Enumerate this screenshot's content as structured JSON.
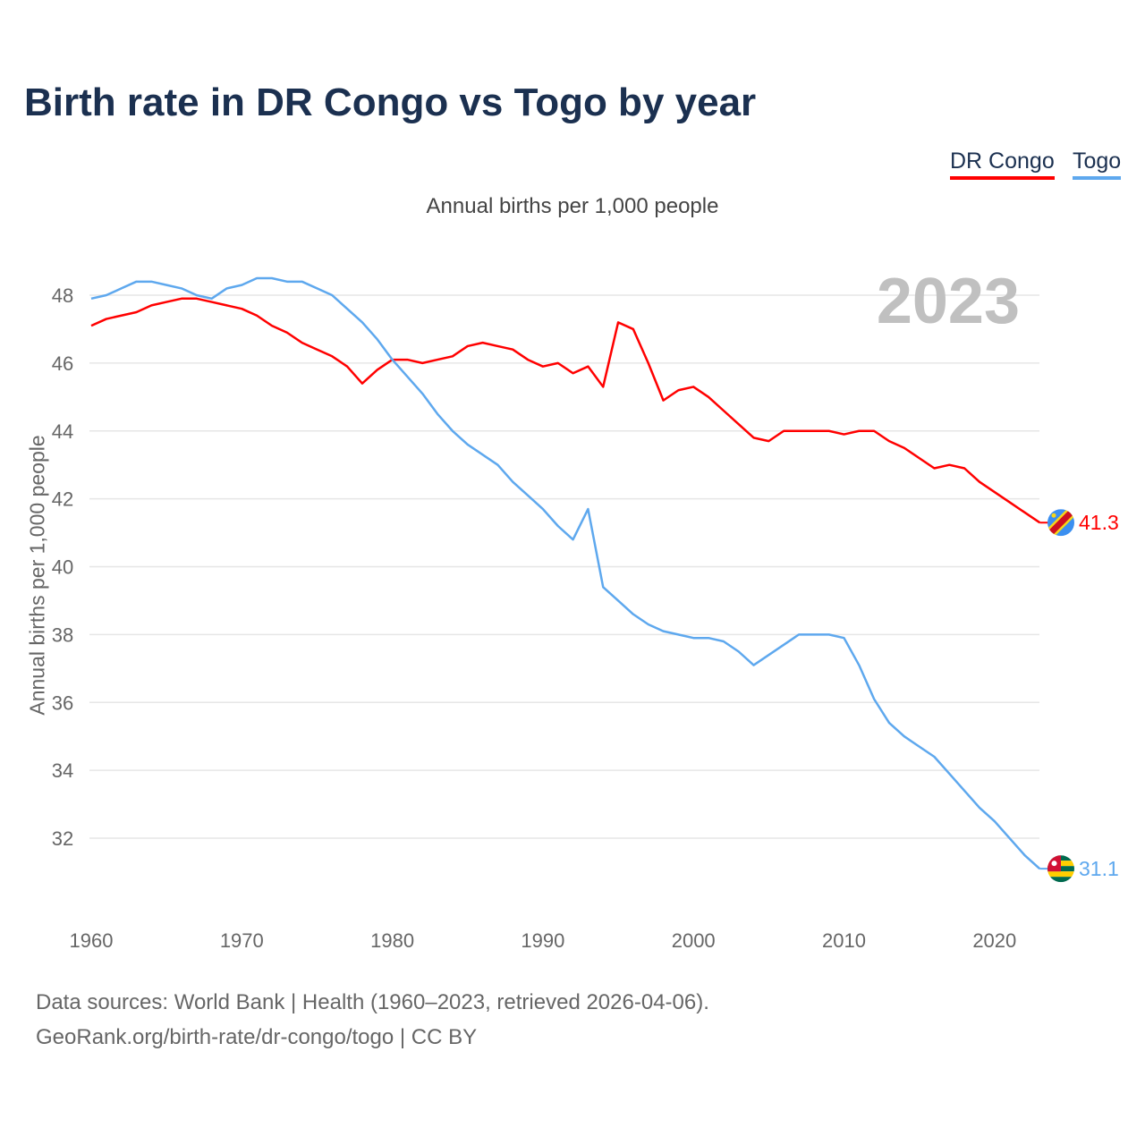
{
  "title": "Birth rate in DR Congo vs Togo by year",
  "legend": [
    "DR Congo",
    "Togo"
  ],
  "subtitle": "Annual births per 1,000 people",
  "footer": [
    "Data sources: World Bank | Health (1960–2023, retrieved 2026-04-06).",
    "GeoRank.org/birth-rate/dr-congo/togo | CC BY"
  ],
  "chart_data": {
    "type": "line",
    "title": "Birth rate in DR Congo vs Togo by year",
    "ylabel": "Annual births per 1,000 people",
    "xlabel": "",
    "year_watermark": "2023",
    "xlim": [
      1960,
      2023
    ],
    "ylim": [
      30.5,
      49
    ],
    "xticks": [
      1960,
      1970,
      1980,
      1990,
      2000,
      2010,
      2020
    ],
    "yticks": [
      32,
      34,
      36,
      38,
      40,
      42,
      44,
      46,
      48
    ],
    "grid": true,
    "legend_position": "top-right",
    "x_start": 1960,
    "series": [
      {
        "name": "DR Congo",
        "color": "#ff0000",
        "end_label": "41.3",
        "flag": "dr-congo-flag-icon",
        "values": [
          47.1,
          47.3,
          47.4,
          47.5,
          47.7,
          47.8,
          47.9,
          47.9,
          47.8,
          47.7,
          47.6,
          47.4,
          47.1,
          46.9,
          46.6,
          46.4,
          46.2,
          45.9,
          45.4,
          45.8,
          46.1,
          46.1,
          46.0,
          46.1,
          46.2,
          46.5,
          46.6,
          46.5,
          46.4,
          46.1,
          45.9,
          46.0,
          45.7,
          45.9,
          45.3,
          47.2,
          47.0,
          46.0,
          44.9,
          45.2,
          45.3,
          45.0,
          44.6,
          44.2,
          43.8,
          43.7,
          44.0,
          44.0,
          44.0,
          44.0,
          43.9,
          44.0,
          44.0,
          43.7,
          43.5,
          43.2,
          42.9,
          43.0,
          42.9,
          42.5,
          42.2,
          41.9,
          41.6,
          41.3
        ]
      },
      {
        "name": "Togo",
        "color": "#5ea8ee",
        "end_label": "31.1",
        "flag": "togo-flag-icon",
        "values": [
          47.9,
          48.0,
          48.2,
          48.4,
          48.4,
          48.3,
          48.2,
          48.0,
          47.9,
          48.2,
          48.3,
          48.5,
          48.5,
          48.4,
          48.4,
          48.2,
          48.0,
          47.6,
          47.2,
          46.7,
          46.1,
          45.6,
          45.1,
          44.5,
          44.0,
          43.6,
          43.3,
          43.0,
          42.5,
          42.1,
          41.7,
          41.2,
          40.8,
          41.7,
          39.4,
          39.0,
          38.6,
          38.3,
          38.1,
          38.0,
          37.9,
          37.9,
          37.8,
          37.5,
          37.1,
          37.4,
          37.7,
          38.0,
          38.0,
          38.0,
          37.9,
          37.1,
          36.1,
          35.4,
          35.0,
          34.7,
          34.4,
          33.9,
          33.4,
          32.9,
          32.5,
          32.0,
          31.5,
          31.1
        ]
      }
    ]
  }
}
